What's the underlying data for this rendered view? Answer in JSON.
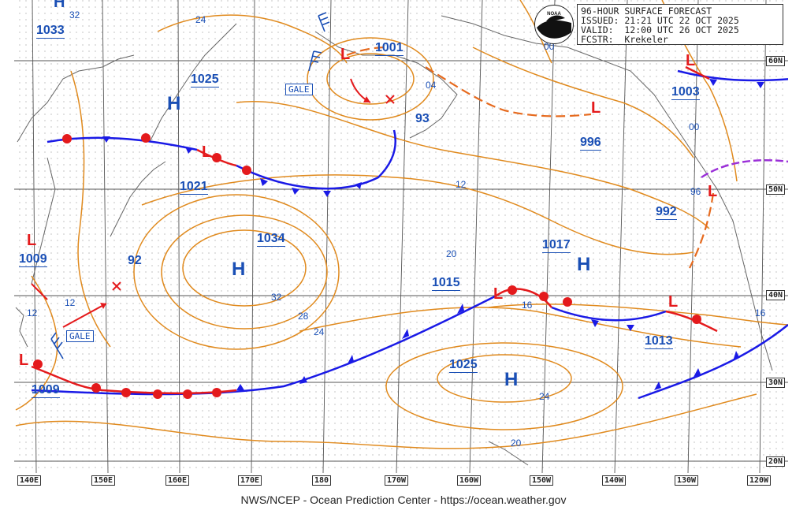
{
  "header": {
    "title": "96-HOUR SURFACE FORECAST",
    "issued": "ISSUED: 21:21 UTC 22 OCT 2025",
    "valid": "VALID:  12:00 UTC 26 OCT 2025",
    "forecaster": "FCSTR:  Krekeler",
    "logo_text": "NOAA"
  },
  "footer": {
    "text": "NWS/NCEP - Ocean Prediction Center - https://ocean.weather.gov"
  },
  "longitude_labels": [
    "140E",
    "150E",
    "160E",
    "170E",
    "180",
    "170W",
    "160W",
    "150W",
    "140W",
    "130W",
    "120W"
  ],
  "latitude_labels": [
    "60N",
    "50N",
    "40N",
    "30N",
    "20N"
  ],
  "pressure_centers": [
    {
      "type": "H",
      "value": "1033"
    },
    {
      "type": "H",
      "value": "1025"
    },
    {
      "type": "H",
      "value": "1034"
    },
    {
      "type": "H",
      "value": "1017"
    },
    {
      "type": "H",
      "value": "1025"
    },
    {
      "type": "L",
      "value": "1001"
    },
    {
      "type": "L",
      "value": "1021"
    },
    {
      "type": "L",
      "value": "1009"
    },
    {
      "type": "L",
      "value": "1009"
    },
    {
      "type": "L",
      "value": "1003"
    },
    {
      "type": "L",
      "value": "996"
    },
    {
      "type": "L",
      "value": "992"
    },
    {
      "type": "L",
      "value": "1015"
    },
    {
      "type": "L",
      "value": "1013"
    }
  ],
  "standalone_labels": [
    "32",
    "24",
    "93",
    "92",
    "04",
    "00",
    "00",
    "96",
    "12",
    "20",
    "32",
    "28",
    "24",
    "16",
    "16",
    "12",
    "12",
    "24",
    "20"
  ],
  "warnings": [
    "GALE",
    "GALE"
  ],
  "colors": {
    "isobar": "#e08a1e",
    "warm_front": "#e41a1c",
    "cold_front": "#1a1ae6",
    "occluded": "#9b30d8",
    "label": "#1a4fb5",
    "grid": "#555555"
  }
}
